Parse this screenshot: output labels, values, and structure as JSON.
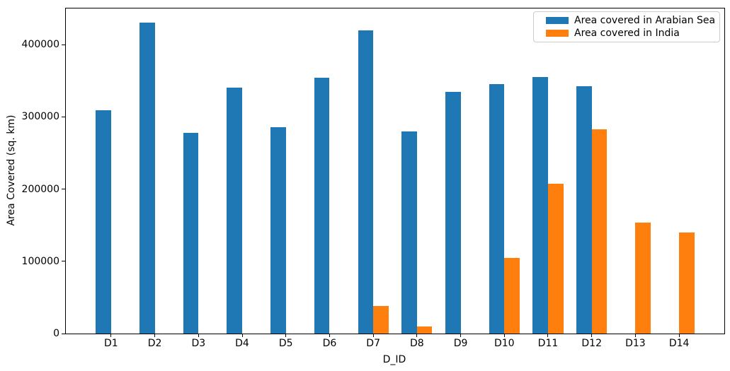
{
  "chart_data": {
    "type": "bar",
    "title": "",
    "xlabel": "D_ID",
    "ylabel": "Area Covered (sq. km)",
    "categories": [
      "D1",
      "D2",
      "D3",
      "D4",
      "D5",
      "D6",
      "D7",
      "D8",
      "D9",
      "D10",
      "D11",
      "D12",
      "D13",
      "D14"
    ],
    "series": [
      {
        "name": "Area covered in Arabian Sea",
        "color": "#1f77b4",
        "values": [
          309000,
          430000,
          278000,
          340000,
          286000,
          354000,
          420000,
          280000,
          335000,
          345000,
          355000,
          342000,
          0,
          0
        ]
      },
      {
        "name": "Area covered in India",
        "color": "#ff7f0e",
        "values": [
          0,
          0,
          0,
          0,
          0,
          0,
          38000,
          10000,
          0,
          105000,
          207000,
          283000,
          154000,
          140000
        ]
      }
    ],
    "ylim": [
      0,
      450000
    ],
    "yticks": [
      0,
      100000,
      200000,
      300000,
      400000
    ],
    "grid": false,
    "legend_position": "upper right",
    "bar_width_fraction": 0.35,
    "background_color": "#ffffff",
    "text_color": "#000000"
  }
}
